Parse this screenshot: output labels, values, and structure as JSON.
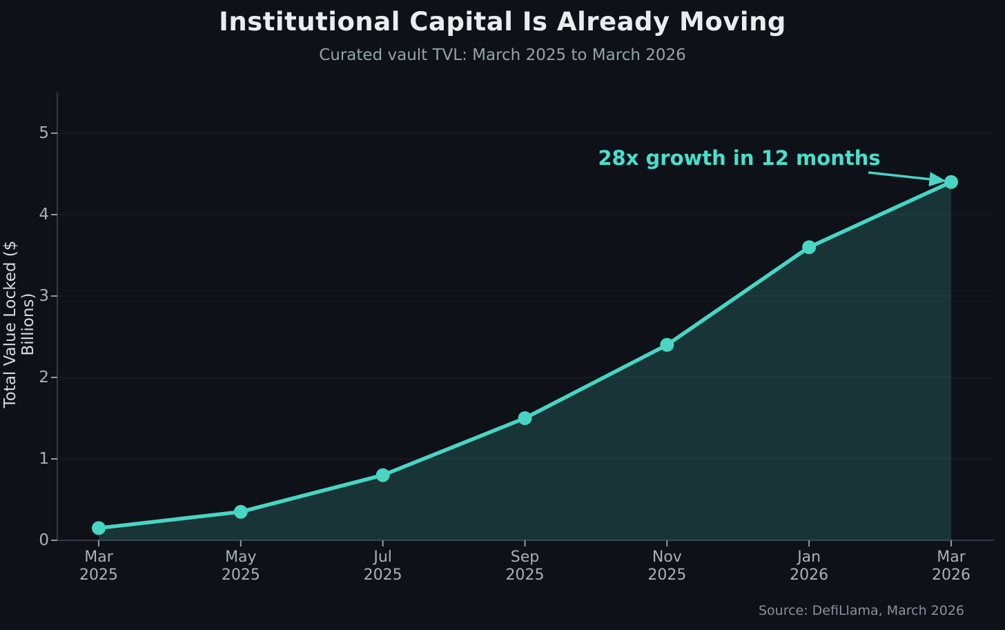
{
  "colors": {
    "background": "#0E1218",
    "line": "#48D5C3",
    "fill": "#48D5C3",
    "fill_opacity": 0.18,
    "marker": "#48D5C3",
    "annotation": "#47E0CC",
    "arrow": "#48D5C3",
    "title": "#E9EDF2",
    "subtitle": "#98A2AC",
    "ylabel": "#D5DAE0",
    "tick_label": "#A9B1BA",
    "tick_mark": "#939BA6",
    "axis_spine": "#3E4552",
    "grid": "#1B212B",
    "source": "#8A929C"
  },
  "chart_data": {
    "type": "area",
    "title": "Institutional Capital Is Already Moving",
    "subtitle": "Curated vault TVL: March 2025 to March 2026",
    "xlabel": "",
    "ylabel": "Total Value Locked ($ Billions)",
    "categories": [
      "Mar\n2025",
      "May\n2025",
      "Jul\n2025",
      "Sep\n2025",
      "Nov\n2025",
      "Jan\n2026",
      "Mar\n2026"
    ],
    "values": [
      0.15,
      0.35,
      0.8,
      1.5,
      2.4,
      3.6,
      4.4
    ],
    "series_name": "Curated vault TVL ($B)",
    "ylim": [
      0,
      5.5
    ],
    "yticks": [
      0,
      1,
      2,
      3,
      4,
      5
    ],
    "grid": true,
    "legend": false,
    "annotation_text": "28x growth in 12 months",
    "annotation_points_to": "Mar\n2026",
    "source": "Source: DefiLlama, March 2026"
  }
}
